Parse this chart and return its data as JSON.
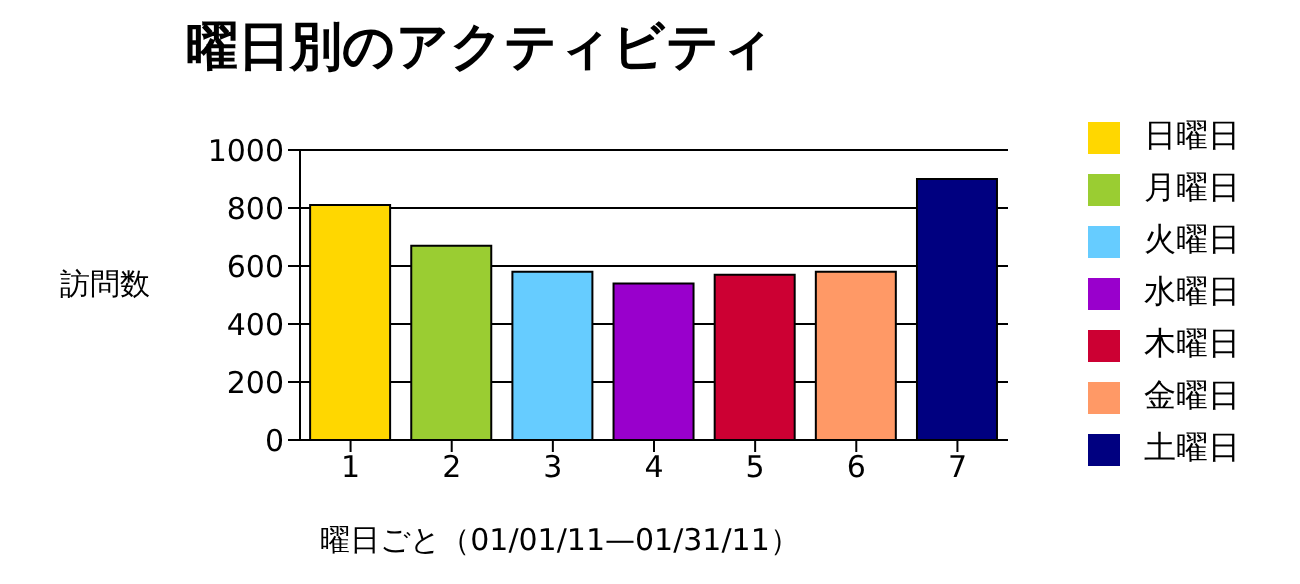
{
  "chart_data": {
    "type": "bar",
    "title": "曜日別のアクティビティ",
    "xlabel": "曜日ごと（01/01/11—01/31/11）",
    "ylabel": "訪問数",
    "categories": [
      "1",
      "2",
      "3",
      "4",
      "5",
      "6",
      "7"
    ],
    "stacked": true,
    "series": [
      {
        "name": "日曜日",
        "color": "#ffd700",
        "values": [
          810,
          null,
          null,
          null,
          null,
          null,
          null
        ]
      },
      {
        "name": "月曜日",
        "color": "#9acd32",
        "values": [
          null,
          670,
          null,
          null,
          null,
          null,
          null
        ]
      },
      {
        "name": "火曜日",
        "color": "#66ccff",
        "values": [
          null,
          null,
          580,
          null,
          null,
          null,
          null
        ]
      },
      {
        "name": "水曜日",
        "color": "#9900cc",
        "values": [
          null,
          null,
          null,
          540,
          null,
          null,
          null
        ]
      },
      {
        "name": "木曜日",
        "color": "#cc0033",
        "values": [
          null,
          null,
          null,
          null,
          570,
          null,
          null
        ]
      },
      {
        "name": "金曜日",
        "color": "#ff9966",
        "values": [
          null,
          null,
          null,
          null,
          null,
          580,
          null
        ]
      },
      {
        "name": "土曜日",
        "color": "#000080",
        "values": [
          null,
          null,
          null,
          null,
          null,
          null,
          900
        ]
      }
    ],
    "ylim": [
      0,
      1000
    ],
    "yticks": [
      0,
      200,
      400,
      600,
      800,
      1000
    ],
    "grid": "y",
    "legend": "right"
  }
}
